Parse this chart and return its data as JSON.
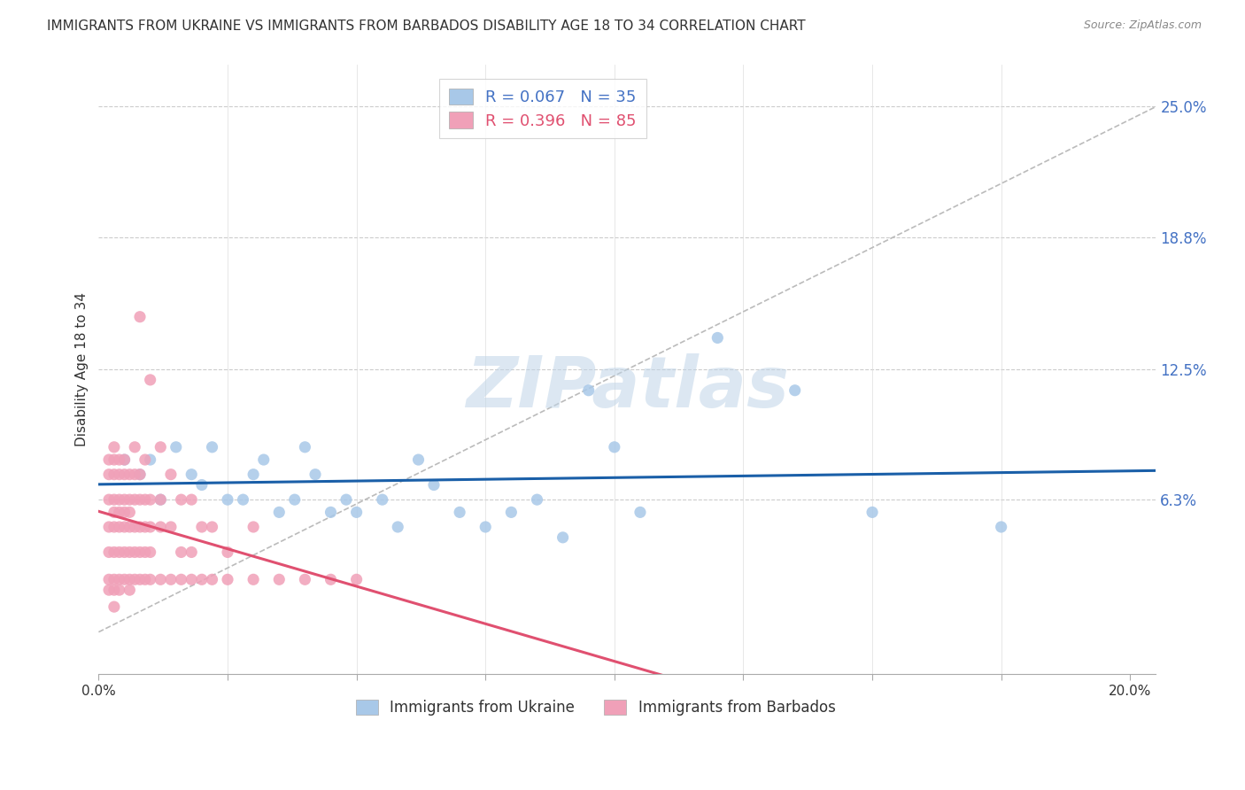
{
  "title": "IMMIGRANTS FROM UKRAINE VS IMMIGRANTS FROM BARBADOS DISABILITY AGE 18 TO 34 CORRELATION CHART",
  "source": "Source: ZipAtlas.com",
  "ylabel": "Disability Age 18 to 34",
  "ytick_labels": [
    "25.0%",
    "18.8%",
    "12.5%",
    "6.3%"
  ],
  "ytick_values": [
    0.25,
    0.188,
    0.125,
    0.063
  ],
  "xlim": [
    0.0,
    0.205
  ],
  "ylim": [
    -0.02,
    0.27
  ],
  "ukraine_color": "#a8c8e8",
  "barbados_color": "#f0a0b8",
  "ukraine_line_color": "#1a5fa8",
  "barbados_line_color": "#e05070",
  "diagonal_color": "#bbbbbb",
  "watermark": "ZIPatlas",
  "ukraine_scatter": [
    [
      0.005,
      0.082
    ],
    [
      0.008,
      0.075
    ],
    [
      0.01,
      0.082
    ],
    [
      0.012,
      0.063
    ],
    [
      0.015,
      0.088
    ],
    [
      0.018,
      0.075
    ],
    [
      0.02,
      0.07
    ],
    [
      0.022,
      0.088
    ],
    [
      0.025,
      0.063
    ],
    [
      0.028,
      0.063
    ],
    [
      0.03,
      0.075
    ],
    [
      0.032,
      0.082
    ],
    [
      0.035,
      0.057
    ],
    [
      0.038,
      0.063
    ],
    [
      0.04,
      0.088
    ],
    [
      0.042,
      0.075
    ],
    [
      0.045,
      0.057
    ],
    [
      0.048,
      0.063
    ],
    [
      0.05,
      0.057
    ],
    [
      0.055,
      0.063
    ],
    [
      0.058,
      0.05
    ],
    [
      0.062,
      0.082
    ],
    [
      0.065,
      0.07
    ],
    [
      0.07,
      0.057
    ],
    [
      0.075,
      0.05
    ],
    [
      0.08,
      0.057
    ],
    [
      0.085,
      0.063
    ],
    [
      0.09,
      0.045
    ],
    [
      0.095,
      0.115
    ],
    [
      0.1,
      0.088
    ],
    [
      0.105,
      0.057
    ],
    [
      0.12,
      0.14
    ],
    [
      0.135,
      0.115
    ],
    [
      0.15,
      0.057
    ],
    [
      0.175,
      0.05
    ]
  ],
  "barbados_scatter": [
    [
      0.002,
      0.082
    ],
    [
      0.002,
      0.075
    ],
    [
      0.002,
      0.063
    ],
    [
      0.002,
      0.05
    ],
    [
      0.002,
      0.038
    ],
    [
      0.002,
      0.025
    ],
    [
      0.002,
      0.02
    ],
    [
      0.003,
      0.088
    ],
    [
      0.003,
      0.082
    ],
    [
      0.003,
      0.075
    ],
    [
      0.003,
      0.063
    ],
    [
      0.003,
      0.057
    ],
    [
      0.003,
      0.05
    ],
    [
      0.003,
      0.038
    ],
    [
      0.003,
      0.025
    ],
    [
      0.003,
      0.02
    ],
    [
      0.003,
      0.012
    ],
    [
      0.004,
      0.082
    ],
    [
      0.004,
      0.075
    ],
    [
      0.004,
      0.063
    ],
    [
      0.004,
      0.057
    ],
    [
      0.004,
      0.05
    ],
    [
      0.004,
      0.038
    ],
    [
      0.004,
      0.025
    ],
    [
      0.004,
      0.02
    ],
    [
      0.005,
      0.082
    ],
    [
      0.005,
      0.075
    ],
    [
      0.005,
      0.063
    ],
    [
      0.005,
      0.057
    ],
    [
      0.005,
      0.05
    ],
    [
      0.005,
      0.038
    ],
    [
      0.005,
      0.025
    ],
    [
      0.006,
      0.075
    ],
    [
      0.006,
      0.063
    ],
    [
      0.006,
      0.057
    ],
    [
      0.006,
      0.05
    ],
    [
      0.006,
      0.038
    ],
    [
      0.006,
      0.025
    ],
    [
      0.006,
      0.02
    ],
    [
      0.007,
      0.088
    ],
    [
      0.007,
      0.075
    ],
    [
      0.007,
      0.063
    ],
    [
      0.007,
      0.05
    ],
    [
      0.007,
      0.038
    ],
    [
      0.007,
      0.025
    ],
    [
      0.008,
      0.075
    ],
    [
      0.008,
      0.063
    ],
    [
      0.008,
      0.05
    ],
    [
      0.008,
      0.038
    ],
    [
      0.008,
      0.025
    ],
    [
      0.008,
      0.15
    ],
    [
      0.009,
      0.082
    ],
    [
      0.009,
      0.063
    ],
    [
      0.009,
      0.05
    ],
    [
      0.009,
      0.038
    ],
    [
      0.009,
      0.025
    ],
    [
      0.01,
      0.12
    ],
    [
      0.01,
      0.063
    ],
    [
      0.01,
      0.05
    ],
    [
      0.01,
      0.038
    ],
    [
      0.01,
      0.025
    ],
    [
      0.012,
      0.088
    ],
    [
      0.012,
      0.063
    ],
    [
      0.012,
      0.05
    ],
    [
      0.012,
      0.025
    ],
    [
      0.014,
      0.075
    ],
    [
      0.014,
      0.05
    ],
    [
      0.014,
      0.025
    ],
    [
      0.016,
      0.063
    ],
    [
      0.016,
      0.038
    ],
    [
      0.016,
      0.025
    ],
    [
      0.018,
      0.063
    ],
    [
      0.018,
      0.038
    ],
    [
      0.018,
      0.025
    ],
    [
      0.02,
      0.05
    ],
    [
      0.02,
      0.025
    ],
    [
      0.022,
      0.05
    ],
    [
      0.022,
      0.025
    ],
    [
      0.025,
      0.038
    ],
    [
      0.025,
      0.025
    ],
    [
      0.03,
      0.05
    ],
    [
      0.03,
      0.025
    ],
    [
      0.035,
      0.025
    ],
    [
      0.04,
      0.025
    ],
    [
      0.045,
      0.025
    ],
    [
      0.05,
      0.025
    ]
  ]
}
